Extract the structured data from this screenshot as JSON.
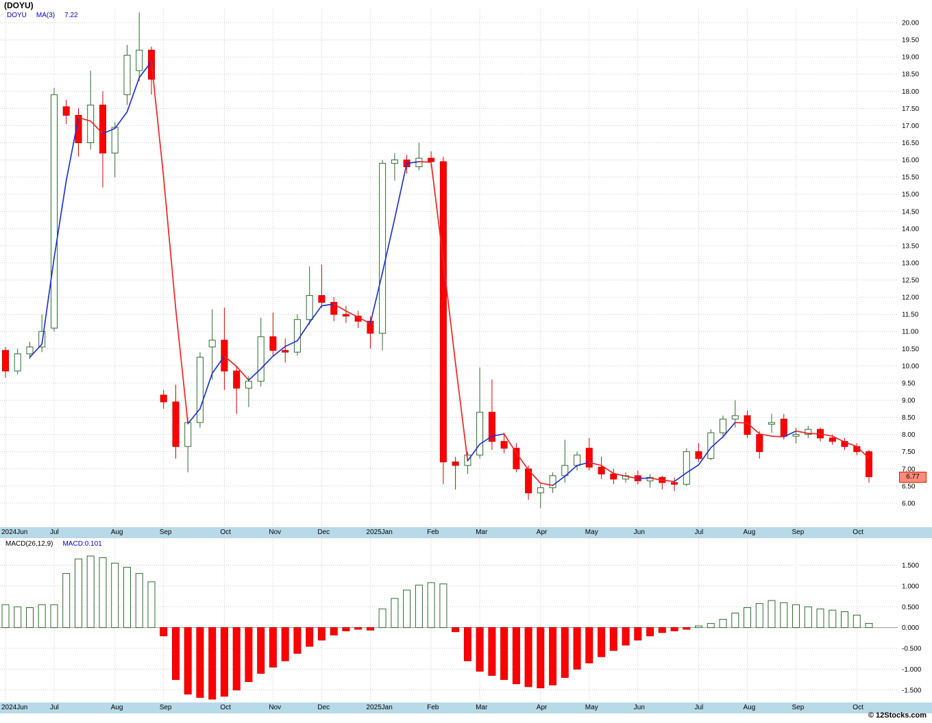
{
  "page": {
    "title": "(DOYU)",
    "watermark": "© 12Stocks.com",
    "colors": {
      "up": "#ffffff",
      "up_border": "#2d6a2d",
      "down": "#ff0000",
      "down_border": "#d40000",
      "ma_up": "#2233cc",
      "ma_down": "#ee2222",
      "band_bg": "#b8d9e8",
      "grid": "#c9c9c9",
      "zero_line": "#999999",
      "legend_blue": "#0000cc",
      "tag_bg": "#ff8c7a",
      "tag_border": "#cc2200"
    }
  },
  "price_panel": {
    "legend": {
      "symbol": "DOYU",
      "ma_label": "MA(3)",
      "ma_value": "7.22"
    },
    "last_price": "6.77"
  },
  "macd_panel": {
    "legend": {
      "name": "MACD(26,12,9)",
      "current_label": "MACD:0.101"
    }
  },
  "chart_data": [
    {
      "type": "candlestick",
      "title": "(DOYU)",
      "interval": "weekly",
      "ylim": [
        5.3,
        20.38
      ],
      "ytick_min": 6.0,
      "ytick_max": 20.0,
      "ytick_step": 0.5,
      "ma_window": 3,
      "ma_last": 7.22,
      "last_price": 6.77,
      "grid": true,
      "months": [
        {
          "label": "2024Jun",
          "i": 0
        },
        {
          "label": "Jul",
          "i": 4
        },
        {
          "label": "Aug",
          "i": 9
        },
        {
          "label": "Sep",
          "i": 13
        },
        {
          "label": "Oct",
          "i": 18
        },
        {
          "label": "Nov",
          "i": 22
        },
        {
          "label": "Dec",
          "i": 26
        },
        {
          "label": "2025Jan",
          "i": 30
        },
        {
          "label": "Feb",
          "i": 35
        },
        {
          "label": "Mar",
          "i": 39
        },
        {
          "label": "Apr",
          "i": 44
        },
        {
          "label": "May",
          "i": 48
        },
        {
          "label": "Jun",
          "i": 52
        },
        {
          "label": "Jul",
          "i": 57
        },
        {
          "label": "Aug",
          "i": 61
        },
        {
          "label": "Sep",
          "i": 65
        },
        {
          "label": "Oct",
          "i": 70
        }
      ],
      "ohlc": [
        [
          10.45,
          10.55,
          9.65,
          9.85
        ],
        [
          9.85,
          10.5,
          9.75,
          10.35
        ],
        [
          10.35,
          10.7,
          10.2,
          10.55
        ],
        [
          10.55,
          11.5,
          10.4,
          11.0
        ],
        [
          11.1,
          18.1,
          11.0,
          17.9
        ],
        [
          17.55,
          17.75,
          17.05,
          17.3
        ],
        [
          17.3,
          17.5,
          16.1,
          16.5
        ],
        [
          16.5,
          18.6,
          16.3,
          17.6
        ],
        [
          17.6,
          18.0,
          15.2,
          16.2
        ],
        [
          16.2,
          17.1,
          15.5,
          16.95
        ],
        [
          17.9,
          19.35,
          17.6,
          19.05
        ],
        [
          18.6,
          20.3,
          18.3,
          19.2
        ],
        [
          19.2,
          19.3,
          17.9,
          18.35
        ],
        [
          9.15,
          9.3,
          8.75,
          8.95
        ],
        [
          8.95,
          9.45,
          7.3,
          7.65
        ],
        [
          7.65,
          8.5,
          6.9,
          8.35
        ],
        [
          8.35,
          10.4,
          8.2,
          10.25
        ],
        [
          10.55,
          11.65,
          9.6,
          10.75
        ],
        [
          10.75,
          11.7,
          9.3,
          9.85
        ],
        [
          9.85,
          10.0,
          8.6,
          9.35
        ],
        [
          9.35,
          9.7,
          8.8,
          9.55
        ],
        [
          9.55,
          11.4,
          9.4,
          10.85
        ],
        [
          10.85,
          11.55,
          10.3,
          10.45
        ],
        [
          10.45,
          10.8,
          10.1,
          10.4
        ],
        [
          10.4,
          11.5,
          10.3,
          11.35
        ],
        [
          11.35,
          12.9,
          11.2,
          12.05
        ],
        [
          12.05,
          12.95,
          11.7,
          11.85
        ],
        [
          11.85,
          12.0,
          11.3,
          11.5
        ],
        [
          11.5,
          11.75,
          11.25,
          11.45
        ],
        [
          11.45,
          11.6,
          11.1,
          11.3
        ],
        [
          11.3,
          11.45,
          10.5,
          10.95
        ],
        [
          10.95,
          16.0,
          10.45,
          15.9
        ],
        [
          15.9,
          16.2,
          15.4,
          16.0
        ],
        [
          16.0,
          16.15,
          15.6,
          15.8
        ],
        [
          15.8,
          16.5,
          15.7,
          16.05
        ],
        [
          16.05,
          16.25,
          15.8,
          15.95
        ],
        [
          15.95,
          16.1,
          6.55,
          7.2
        ],
        [
          7.2,
          7.35,
          6.4,
          7.1
        ],
        [
          7.1,
          7.5,
          6.85,
          7.4
        ],
        [
          7.4,
          9.95,
          7.3,
          8.65
        ],
        [
          8.65,
          9.6,
          7.55,
          7.8
        ],
        [
          7.8,
          8.05,
          7.45,
          7.6
        ],
        [
          7.6,
          7.75,
          6.9,
          7.0
        ],
        [
          7.0,
          7.1,
          6.1,
          6.3
        ],
        [
          6.3,
          6.55,
          5.85,
          6.45
        ],
        [
          6.45,
          6.9,
          6.3,
          6.8
        ],
        [
          6.8,
          7.85,
          6.6,
          7.1
        ],
        [
          7.1,
          7.5,
          6.95,
          7.4
        ],
        [
          7.6,
          7.9,
          6.95,
          7.05
        ],
        [
          7.05,
          7.35,
          6.7,
          6.85
        ],
        [
          6.85,
          7.0,
          6.55,
          6.7
        ],
        [
          6.7,
          6.9,
          6.6,
          6.8
        ],
        [
          6.8,
          6.95,
          6.55,
          6.65
        ],
        [
          6.65,
          6.85,
          6.45,
          6.75
        ],
        [
          6.75,
          6.8,
          6.4,
          6.6
        ],
        [
          6.6,
          6.75,
          6.35,
          6.55
        ],
        [
          6.55,
          7.6,
          6.5,
          7.5
        ],
        [
          7.5,
          7.75,
          7.2,
          7.3
        ],
        [
          7.3,
          8.15,
          7.25,
          8.05
        ],
        [
          8.05,
          8.55,
          7.9,
          8.45
        ],
        [
          8.45,
          9.0,
          8.2,
          8.55
        ],
        [
          8.55,
          8.7,
          7.9,
          8.0
        ],
        [
          8.0,
          8.1,
          7.3,
          7.5
        ],
        [
          8.3,
          8.6,
          8.05,
          8.35
        ],
        [
          8.45,
          8.6,
          7.85,
          7.95
        ],
        [
          7.95,
          8.2,
          7.75,
          8.0
        ],
        [
          8.0,
          8.25,
          7.9,
          8.15
        ],
        [
          8.15,
          8.2,
          7.8,
          7.9
        ],
        [
          7.9,
          8.0,
          7.7,
          7.8
        ],
        [
          7.8,
          7.9,
          7.55,
          7.65
        ],
        [
          7.65,
          7.75,
          7.4,
          7.5
        ],
        [
          7.5,
          7.55,
          6.6,
          6.77
        ]
      ]
    },
    {
      "type": "bar",
      "name": "MACD(26,12,9)",
      "macd_current": 0.101,
      "ylim": [
        -1.8,
        2.15
      ],
      "ytick_min": -1.5,
      "ytick_max": 1.5,
      "ytick_step": 0.5,
      "grid": true,
      "values": [
        0.55,
        0.5,
        0.48,
        0.55,
        0.55,
        1.3,
        1.65,
        1.72,
        1.68,
        1.55,
        1.45,
        1.3,
        1.1,
        -0.2,
        -1.25,
        -1.6,
        -1.68,
        -1.72,
        -1.65,
        -1.5,
        -1.3,
        -1.1,
        -0.95,
        -0.8,
        -0.62,
        -0.45,
        -0.3,
        -0.18,
        -0.08,
        -0.04,
        -0.06,
        0.45,
        0.7,
        0.9,
        1.02,
        1.08,
        1.05,
        -0.1,
        -0.8,
        -1.05,
        -1.15,
        -1.25,
        -1.35,
        -1.42,
        -1.45,
        -1.38,
        -1.2,
        -1.0,
        -0.85,
        -0.7,
        -0.55,
        -0.42,
        -0.3,
        -0.2,
        -0.12,
        -0.08,
        -0.04,
        0.04,
        0.1,
        0.2,
        0.35,
        0.48,
        0.58,
        0.65,
        0.6,
        0.55,
        0.5,
        0.45,
        0.42,
        0.38,
        0.3,
        0.101
      ]
    }
  ]
}
